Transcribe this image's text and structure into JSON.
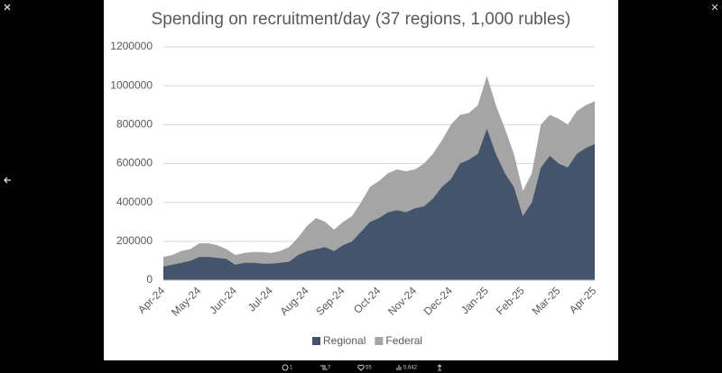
{
  "chart_data": {
    "type": "stacked_area",
    "title": "Spending on recruitment/day (37 regions, 1,000 rubles)",
    "categories": [
      "Apr-24",
      null,
      null,
      null,
      "May-24",
      null,
      null,
      null,
      "Jun-24",
      null,
      null,
      null,
      "Jul-24",
      null,
      null,
      null,
      "Aug-24",
      null,
      null,
      null,
      "Sep-24",
      null,
      null,
      null,
      "Oct-24",
      null,
      null,
      null,
      "Nov-24",
      null,
      null,
      null,
      "Dec-24",
      null,
      null,
      null,
      "Jan-25",
      null,
      null,
      null,
      "Feb-25",
      null,
      null,
      null,
      "Mar-25",
      null,
      null,
      null,
      "Apr-25"
    ],
    "series": [
      {
        "name": "Regional",
        "color": "#44546a",
        "values": [
          70000,
          80000,
          90000,
          100000,
          120000,
          120000,
          115000,
          110000,
          80000,
          90000,
          90000,
          85000,
          85000,
          90000,
          95000,
          130000,
          150000,
          160000,
          170000,
          150000,
          180000,
          200000,
          250000,
          300000,
          320000,
          350000,
          360000,
          350000,
          370000,
          380000,
          420000,
          480000,
          520000,
          600000,
          620000,
          650000,
          780000,
          650000,
          550000,
          480000,
          330000,
          400000,
          580000,
          640000,
          600000,
          580000,
          650000,
          680000,
          700000
        ]
      },
      {
        "name": "Federal",
        "color": "#a5a5a5",
        "values": [
          50000,
          50000,
          60000,
          60000,
          70000,
          70000,
          65000,
          50000,
          50000,
          50000,
          55000,
          60000,
          55000,
          60000,
          75000,
          90000,
          130000,
          160000,
          130000,
          110000,
          120000,
          130000,
          150000,
          180000,
          190000,
          200000,
          210000,
          210000,
          200000,
          220000,
          230000,
          240000,
          280000,
          250000,
          240000,
          250000,
          270000,
          250000,
          230000,
          170000,
          130000,
          150000,
          220000,
          210000,
          230000,
          220000,
          220000,
          220000,
          220000
        ]
      }
    ],
    "ylim": [
      0,
      1200000
    ],
    "yticks": [
      0,
      200000,
      400000,
      600000,
      800000,
      1000000,
      1200000
    ],
    "grid": true,
    "legend": "bottom"
  },
  "ui": {
    "replies": "1",
    "reposts": "7",
    "likes": "55",
    "views": "5,642"
  }
}
